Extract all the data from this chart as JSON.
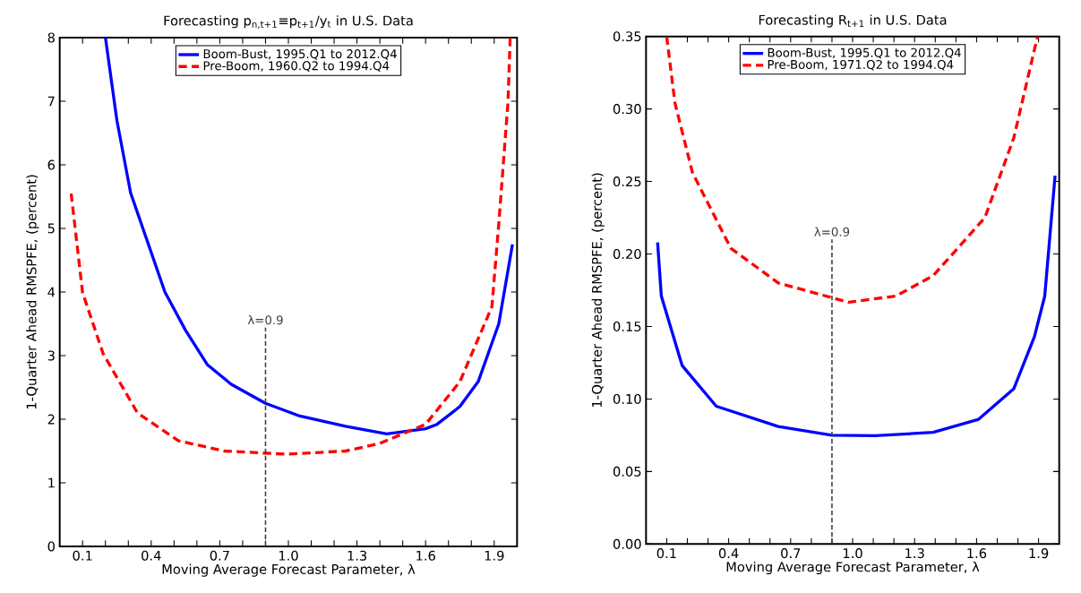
{
  "chart_data": [
    {
      "type": "line",
      "title": "Forecasting p$_{n,t+1}$≡p$_{t+1}$/y$_{t}$ in U.S. Data",
      "xlabel": "Moving Average Forecast Parameter, λ",
      "ylabel": "1-Quarter Ahead RMSPFE, (percent)",
      "xlim": [
        0,
        2
      ],
      "ylim": [
        0,
        8
      ],
      "xticks": [
        {
          "value": 0.1,
          "label": "0.1"
        },
        {
          "value": 0.2,
          "label": null
        },
        {
          "value": 0.3,
          "label": null
        },
        {
          "value": 0.4,
          "label": "0.4"
        },
        {
          "value": 0.5,
          "label": null
        },
        {
          "value": 0.6,
          "label": null
        },
        {
          "value": 0.7,
          "label": "0.7"
        },
        {
          "value": 0.8,
          "label": null
        },
        {
          "value": 0.9,
          "label": null
        },
        {
          "value": 1.0,
          "label": "1.0"
        },
        {
          "value": 1.1,
          "label": null
        },
        {
          "value": 1.2,
          "label": null
        },
        {
          "value": 1.3,
          "label": "1.3"
        },
        {
          "value": 1.4,
          "label": null
        },
        {
          "value": 1.5,
          "label": null
        },
        {
          "value": 1.6,
          "label": "1.6"
        },
        {
          "value": 1.7,
          "label": null
        },
        {
          "value": 1.8,
          "label": null
        },
        {
          "value": 1.9,
          "label": "1.9"
        }
      ],
      "yticks": [
        0,
        1,
        2,
        3,
        4,
        5,
        6,
        7,
        8
      ],
      "legend": "top",
      "series": [
        {
          "name": "Boom-Bust, 1995.Q1 to 2012.Q4",
          "color": "#0000ff",
          "line_style": "solid",
          "x": [
            0.2,
            0.25,
            0.31,
            0.46,
            0.55,
            0.645,
            0.75,
            0.9,
            1.05,
            1.25,
            1.43,
            1.6,
            1.65,
            1.75,
            1.83,
            1.92,
            1.98
          ],
          "values": [
            8,
            6.7,
            5.56,
            4.0,
            3.4,
            2.86,
            2.55,
            2.25,
            2.05,
            1.89,
            1.77,
            1.85,
            1.92,
            2.2,
            2.59,
            3.5,
            4.75
          ]
        },
        {
          "name": "Pre-Boom, 1960.Q2 to 1994.Q4",
          "color": "#ff0000",
          "line_style": "dashed",
          "x": [
            0.05,
            0.1,
            0.19,
            0.34,
            0.52,
            0.72,
            0.99,
            1.25,
            1.4,
            1.6,
            1.75,
            1.89,
            1.92,
            1.96,
            1.97
          ],
          "values": [
            5.55,
            3.99,
            3.03,
            2.1,
            1.66,
            1.5,
            1.45,
            1.5,
            1.62,
            1.92,
            2.59,
            3.77,
            5.07,
            6.97,
            8
          ]
        }
      ],
      "ref_lines": [
        {
          "axis": "x",
          "value": 0.9,
          "label": "λ=0.9",
          "color": "#404040",
          "line_style": "dashed"
        }
      ]
    },
    {
      "type": "line",
      "title": "Forecasting R$_{t+1}$ in U.S. Data",
      "xlabel": "Moving Average Forecast Parameter, λ",
      "ylabel": "1-Quarter Ahead RMSPFE, (percent)",
      "xlim": [
        0,
        2
      ],
      "ylim": [
        0,
        0.35
      ],
      "xticks": [
        {
          "value": 0.1,
          "label": "0.1"
        },
        {
          "value": 0.2,
          "label": null
        },
        {
          "value": 0.3,
          "label": null
        },
        {
          "value": 0.4,
          "label": "0.4"
        },
        {
          "value": 0.5,
          "label": null
        },
        {
          "value": 0.6,
          "label": null
        },
        {
          "value": 0.7,
          "label": "0.7"
        },
        {
          "value": 0.8,
          "label": null
        },
        {
          "value": 0.9,
          "label": null
        },
        {
          "value": 1.0,
          "label": "1.0"
        },
        {
          "value": 1.1,
          "label": null
        },
        {
          "value": 1.2,
          "label": null
        },
        {
          "value": 1.3,
          "label": "1.3"
        },
        {
          "value": 1.4,
          "label": null
        },
        {
          "value": 1.5,
          "label": null
        },
        {
          "value": 1.6,
          "label": "1.6"
        },
        {
          "value": 1.7,
          "label": null
        },
        {
          "value": 1.8,
          "label": null
        },
        {
          "value": 1.9,
          "label": "1.9"
        }
      ],
      "yticks": [
        {
          "value": 0,
          "label": "0.00"
        },
        {
          "value": 0.05,
          "label": "0.05"
        },
        {
          "value": 0.1,
          "label": "0.10"
        },
        {
          "value": 0.15,
          "label": "0.15"
        },
        {
          "value": 0.2,
          "label": "0.20"
        },
        {
          "value": 0.25,
          "label": "0.25"
        },
        {
          "value": 0.3,
          "label": "0.30"
        },
        {
          "value": 0.35,
          "label": "0.35"
        }
      ],
      "legend": "top",
      "series": [
        {
          "name": "Boom-Bust, 1995.Q1 to 2012.Q4",
          "color": "#0000ff",
          "line_style": "solid",
          "x": [
            0.056,
            0.074,
            0.175,
            0.34,
            0.64,
            0.9,
            1.11,
            1.39,
            1.61,
            1.78,
            1.88,
            1.93,
            1.98
          ],
          "values": [
            0.208,
            0.171,
            0.123,
            0.095,
            0.081,
            0.075,
            0.0747,
            0.077,
            0.086,
            0.107,
            0.143,
            0.171,
            0.254
          ]
        },
        {
          "name": "Pre-Boom, 1971.Q2 to 1994.Q4",
          "color": "#ff0000",
          "line_style": "dashed",
          "x": [
            0.1,
            0.14,
            0.225,
            0.41,
            0.64,
            0.98,
            1.21,
            1.39,
            1.64,
            1.78,
            1.895
          ],
          "values": [
            0.35,
            0.304,
            0.256,
            0.204,
            0.18,
            0.1667,
            0.171,
            0.185,
            0.225,
            0.28,
            0.35
          ]
        }
      ],
      "ref_lines": [
        {
          "axis": "x",
          "value": 0.9,
          "label": "λ=0.9",
          "color": "#404040",
          "line_style": "dashed"
        }
      ]
    }
  ]
}
